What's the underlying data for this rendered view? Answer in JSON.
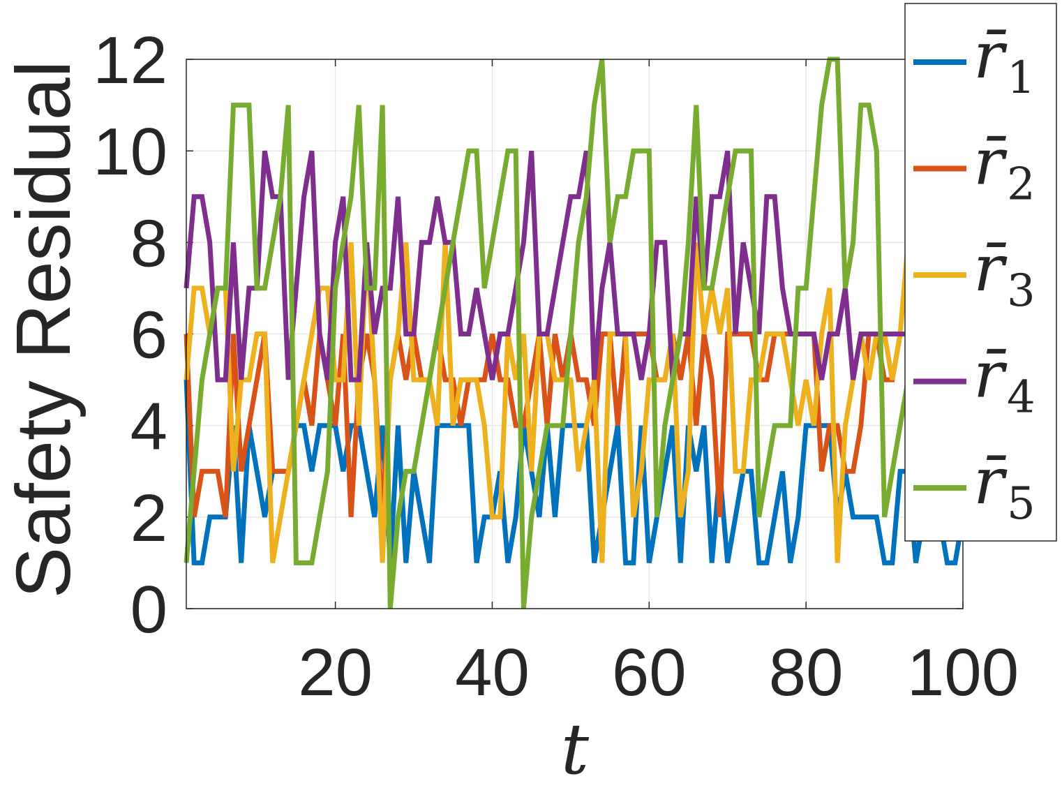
{
  "chart_data": {
    "type": "line",
    "xlabel": "t",
    "ylabel": "Safety Residual",
    "xlim": [
      1,
      100
    ],
    "ylim": [
      0,
      12
    ],
    "xticks": [
      20,
      40,
      60,
      80,
      100
    ],
    "yticks": [
      0,
      2,
      4,
      6,
      8,
      10,
      12
    ],
    "grid": true,
    "legend_position": "top-right",
    "x": [
      1,
      2,
      3,
      4,
      5,
      6,
      7,
      8,
      9,
      10,
      11,
      12,
      13,
      14,
      15,
      16,
      17,
      18,
      19,
      20,
      21,
      22,
      23,
      24,
      25,
      26,
      27,
      28,
      29,
      30,
      31,
      32,
      33,
      34,
      35,
      36,
      37,
      38,
      39,
      40,
      41,
      42,
      43,
      44,
      45,
      46,
      47,
      48,
      49,
      50,
      51,
      52,
      53,
      54,
      55,
      56,
      57,
      58,
      59,
      60,
      61,
      62,
      63,
      64,
      65,
      66,
      67,
      68,
      69,
      70,
      71,
      72,
      73,
      74,
      75,
      76,
      77,
      78,
      79,
      80,
      81,
      82,
      83,
      84,
      85,
      86,
      87,
      88,
      89,
      90,
      91,
      92,
      93,
      94,
      95,
      96,
      97,
      98,
      99,
      100
    ],
    "series": [
      {
        "name": "r̄",
        "subscript": "1",
        "color": "#0072BD",
        "values": [
          5,
          1,
          1,
          2,
          2,
          2,
          4,
          1,
          4,
          3,
          2,
          3,
          3,
          3,
          4,
          4,
          3,
          4,
          4,
          4,
          3,
          4,
          4,
          3,
          2,
          4,
          1,
          4,
          1,
          3,
          2,
          1,
          4,
          4,
          4,
          4,
          4,
          1,
          2,
          2,
          3,
          1,
          2,
          4,
          3,
          2,
          4,
          2,
          4,
          4,
          4,
          4,
          1,
          2,
          3,
          4,
          1,
          1,
          4,
          1,
          2,
          3,
          4,
          1,
          4,
          3,
          4,
          1,
          3,
          1,
          2,
          3,
          3,
          1,
          1,
          2,
          3,
          1,
          2,
          4,
          4,
          4,
          4,
          2,
          3,
          2,
          2,
          2,
          2,
          1,
          1,
          3,
          3,
          1,
          2,
          2,
          2,
          1,
          1,
          2
        ]
      },
      {
        "name": "r̄",
        "subscript": "2",
        "color": "#D95319",
        "values": [
          6,
          2,
          3,
          3,
          3,
          2,
          6,
          3,
          4,
          5,
          6,
          3,
          3,
          3,
          4,
          5,
          4,
          6,
          5,
          4,
          6,
          2,
          5,
          6,
          5,
          2,
          5,
          6,
          5,
          6,
          5,
          5,
          6,
          5,
          5,
          4,
          5,
          5,
          5,
          6,
          5,
          5,
          4,
          4,
          5,
          6,
          4,
          6,
          5,
          6,
          5,
          5,
          4,
          6,
          6,
          4,
          6,
          6,
          6,
          6,
          5,
          5,
          6,
          5,
          6,
          4,
          6,
          5,
          2,
          6,
          6,
          6,
          6,
          5,
          5,
          6,
          6,
          6,
          6,
          6,
          6,
          3,
          4,
          4,
          3,
          3,
          4,
          6,
          6,
          5,
          5,
          6,
          6,
          6,
          6,
          6,
          4,
          5,
          6,
          6
        ]
      },
      {
        "name": "r̄",
        "subscript": "3",
        "color": "#EDB120",
        "values": [
          5,
          7,
          7,
          6,
          7,
          7,
          3,
          5,
          5,
          6,
          6,
          1,
          2,
          3,
          4,
          5,
          6,
          7,
          7,
          5,
          5,
          8,
          4,
          8,
          5,
          1,
          5,
          6,
          8,
          5,
          5,
          5,
          4,
          8,
          4,
          5,
          5,
          5,
          4,
          2,
          2,
          6,
          5,
          6,
          3,
          6,
          6,
          5,
          5,
          5,
          3,
          4,
          5,
          1,
          6,
          6,
          6,
          2,
          3,
          5,
          5,
          5,
          6,
          2,
          3,
          8,
          6,
          7,
          6,
          7,
          3,
          3,
          5,
          5,
          6,
          6,
          6,
          5,
          4,
          5,
          4,
          6,
          7,
          1,
          4,
          5,
          6,
          5,
          6,
          6,
          5,
          6,
          8,
          8,
          8,
          8,
          8,
          7,
          6,
          5
        ]
      },
      {
        "name": "r̄",
        "subscript": "4",
        "color": "#7E2F8E",
        "values": [
          7,
          9,
          9,
          8,
          5,
          5,
          8,
          5,
          7,
          7,
          10,
          9,
          9,
          5,
          7,
          9,
          10,
          6,
          5,
          8,
          9,
          5,
          5,
          8,
          6,
          7,
          7,
          9,
          6,
          6,
          8,
          8,
          9,
          8,
          8,
          6,
          6,
          7,
          6,
          5,
          6,
          6,
          7,
          8,
          10,
          6,
          6,
          7,
          8,
          9,
          9,
          10,
          5,
          7,
          8,
          6,
          6,
          6,
          5,
          6,
          8,
          8,
          5,
          6,
          6,
          9,
          7,
          9,
          9,
          10,
          6,
          8,
          7,
          6,
          9,
          9,
          7,
          6,
          6,
          6,
          6,
          5,
          6,
          6,
          7,
          5,
          6,
          6,
          6,
          6,
          6,
          6,
          6,
          6,
          6,
          6,
          6,
          6,
          6,
          6
        ]
      },
      {
        "name": "r̄",
        "subscript": "5",
        "color": "#77AC30",
        "values": [
          1,
          3,
          5,
          6,
          7,
          7,
          11,
          11,
          11,
          7,
          7,
          8,
          9,
          11,
          1,
          1,
          1,
          2,
          3,
          7,
          8,
          9,
          11,
          7,
          7,
          11,
          0,
          2,
          3,
          3,
          4,
          5,
          6,
          7,
          8,
          9,
          10,
          10,
          7,
          8,
          9,
          10,
          10,
          0,
          2,
          3,
          4,
          4,
          4,
          6,
          8,
          9,
          11,
          12,
          8,
          9,
          9,
          10,
          10,
          10,
          2,
          4,
          5,
          6,
          8,
          11,
          7,
          7,
          8,
          9,
          10,
          10,
          10,
          2,
          3,
          4,
          4,
          4,
          7,
          7,
          9,
          11,
          12,
          12,
          7,
          8,
          11,
          11,
          10,
          2,
          3,
          4,
          5,
          6,
          7,
          8,
          9,
          10,
          11,
          12
        ]
      }
    ]
  }
}
